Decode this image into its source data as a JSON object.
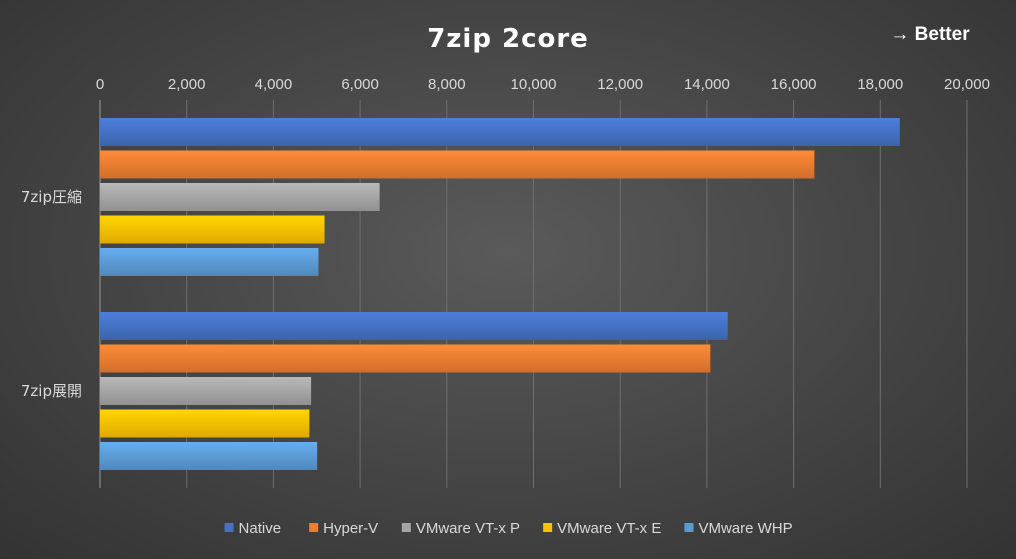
{
  "chart_data": {
    "type": "bar",
    "orientation": "horizontal",
    "title": "7zip 2core",
    "annotation": "→ Better",
    "categories": [
      "7zip圧縮",
      "7zip展開"
    ],
    "series": [
      {
        "name": "Native",
        "color": "#4472C4",
        "values": [
          18450,
          14480
        ]
      },
      {
        "name": "Hyper-V",
        "color": "#ED7D31",
        "values": [
          16480,
          14080
        ]
      },
      {
        "name": "VMware VT-x P",
        "color": "#A5A5A5",
        "values": [
          6450,
          4870
        ]
      },
      {
        "name": "VMware VT-x E",
        "color": "#FFC000",
        "values": [
          5180,
          4830
        ]
      },
      {
        "name": "VMware WHP",
        "color": "#5B9BD5",
        "values": [
          5040,
          5010
        ]
      }
    ],
    "xlim": [
      0,
      20000
    ],
    "ticks": [
      0,
      2000,
      4000,
      6000,
      8000,
      10000,
      12000,
      14000,
      16000,
      18000,
      20000
    ],
    "tick_labels": [
      "0",
      "2,000",
      "4,000",
      "6,000",
      "8,000",
      "10,000",
      "12,000",
      "14,000",
      "16,000",
      "18,000",
      "20,000"
    ],
    "grid": true,
    "axis_position": "top",
    "legend_position": "bottom"
  }
}
